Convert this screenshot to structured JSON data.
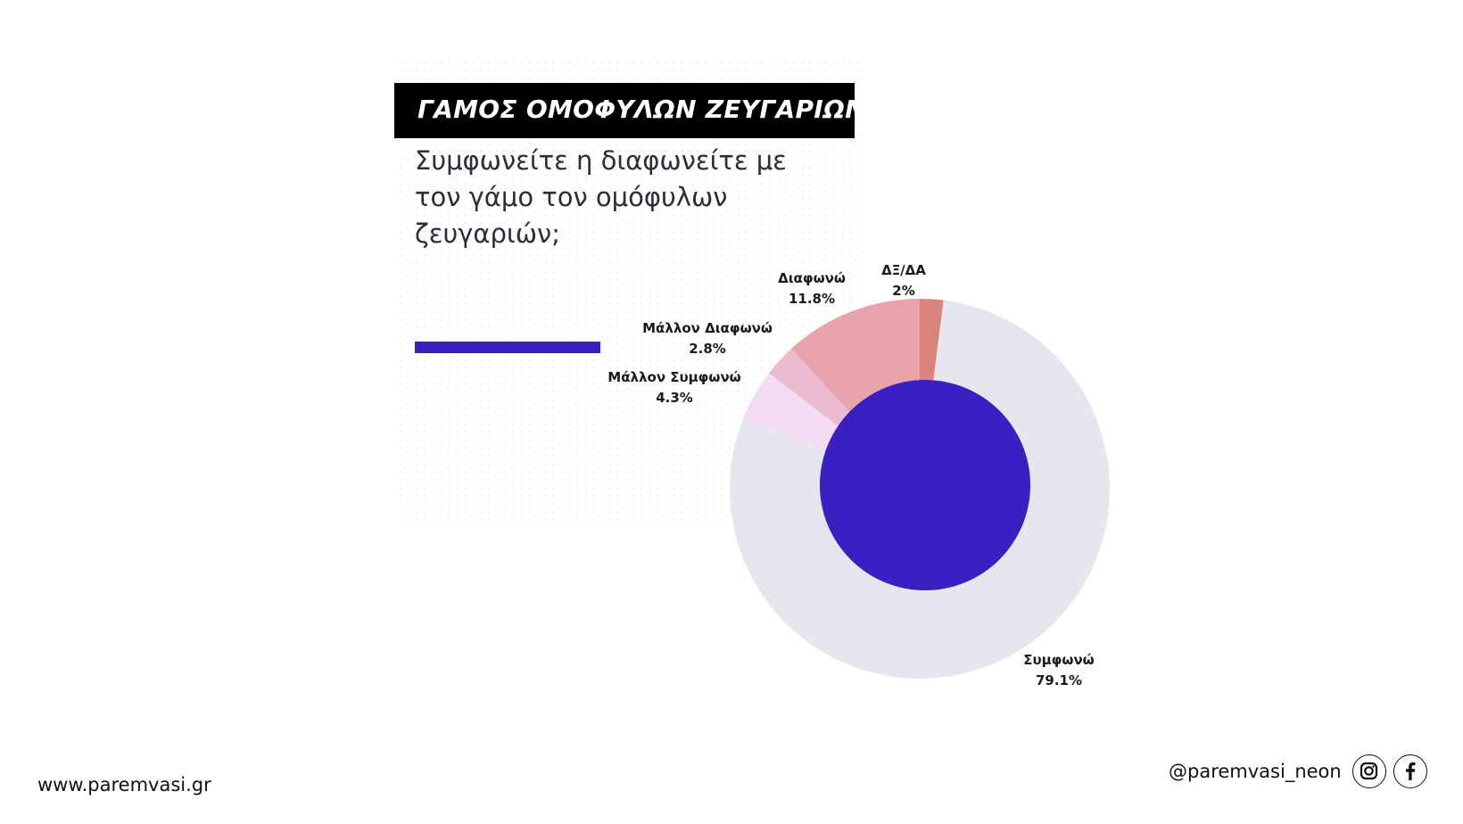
{
  "header": {
    "title": "ΓΑΜΟΣ ΟΜΟΦΥΛΩΝ ΖΕΥΓΑΡΙΩΝ",
    "question": "Συμφωνείτε η διαφωνείτε με τον γάμο τον ομόφυλων ζευγαριών;"
  },
  "colors": {
    "accent": "#3a1fc2",
    "title_bar": "#000000"
  },
  "chart_data": {
    "type": "pie",
    "title": "",
    "center_color": "#3a1fc2",
    "slices": [
      {
        "label": "ΔΞ/ΔΑ",
        "value": 2,
        "value_label": "2%",
        "color": "#d8847c"
      },
      {
        "label": "Συμφωνώ",
        "value": 79.1,
        "value_label": "79.1%",
        "color": "#e7e6ef"
      },
      {
        "label": "Μάλλον Συμφωνώ",
        "value": 4.3,
        "value_label": "4.3%",
        "color": "#f5dbf4"
      },
      {
        "label": "Μάλλον Διαφωνώ",
        "value": 2.8,
        "value_label": "2.8%",
        "color": "#ebbcd0"
      },
      {
        "label": "Διαφωνώ",
        "value": 11.8,
        "value_label": "11.8%",
        "color": "#e8a3ab"
      }
    ]
  },
  "footer": {
    "website": "www.paremvasi.gr",
    "handle": "@paremvasi_neon",
    "icons": [
      "instagram-icon",
      "facebook-icon"
    ]
  }
}
